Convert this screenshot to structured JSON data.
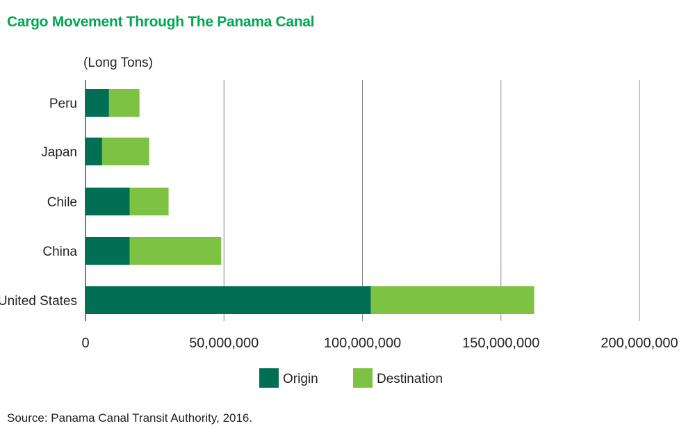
{
  "chart_data": {
    "type": "bar",
    "orientation": "horizontal",
    "stacked": true,
    "title": "Cargo Movement Through The Panama Canal",
    "unit_label": "(Long Tons)",
    "categories": [
      "Peru",
      "Japan",
      "Chile",
      "China",
      "United States"
    ],
    "series": [
      {
        "name": "Origin",
        "color": "#006f53",
        "values": [
          8500000,
          6000000,
          16000000,
          16000000,
          103000000
        ]
      },
      {
        "name": "Destination",
        "color": "#7dc242",
        "values": [
          11000000,
          17000000,
          14000000,
          33000000,
          59000000
        ]
      }
    ],
    "xlim": [
      0,
      200000000
    ],
    "xticks": [
      0,
      50000000,
      100000000,
      150000000,
      200000000
    ],
    "xtick_labels": [
      "0",
      "50,000,000",
      "100,000,000",
      "150,000,000",
      "200,000,000"
    ],
    "grid": true,
    "legend_position": "bottom-center"
  },
  "source": "Source: Panama Canal Transit Authority, 2016."
}
